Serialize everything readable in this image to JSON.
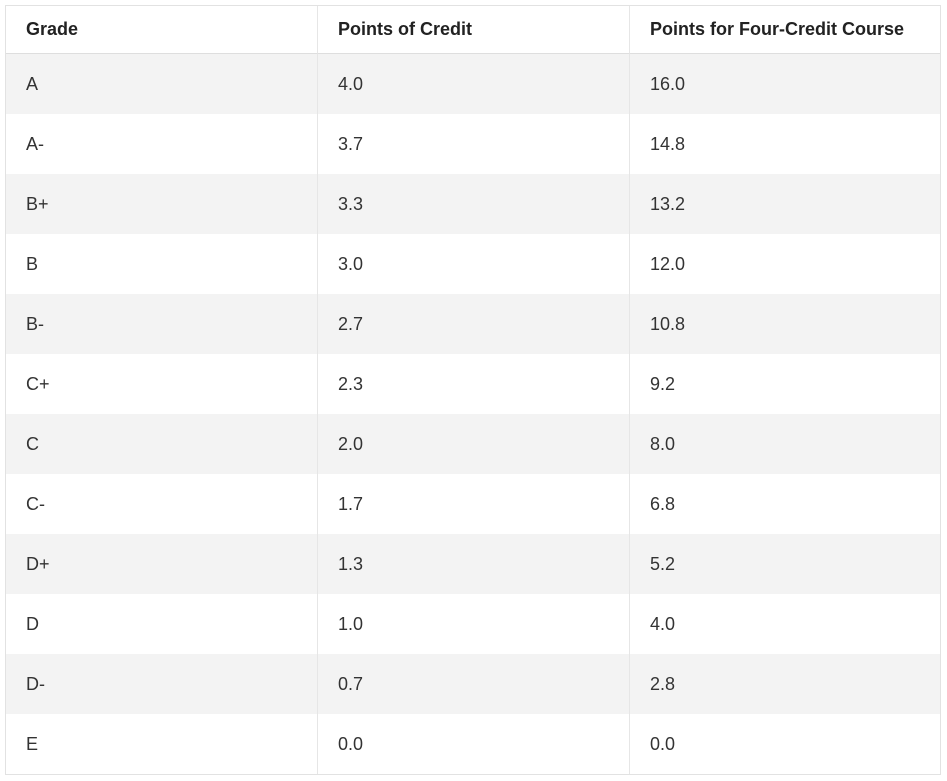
{
  "table": {
    "headers": [
      "Grade",
      "Points of Credit",
      "Points for Four-Credit Course"
    ],
    "rows": [
      [
        "A",
        "4.0",
        "16.0"
      ],
      [
        "A-",
        "3.7",
        "14.8"
      ],
      [
        "B+",
        "3.3",
        "13.2"
      ],
      [
        "B",
        "3.0",
        "12.0"
      ],
      [
        "B-",
        "2.7",
        "10.8"
      ],
      [
        "C+",
        "2.3",
        "9.2"
      ],
      [
        "C",
        "2.0",
        "8.0"
      ],
      [
        "C-",
        "1.7",
        "6.8"
      ],
      [
        "D+",
        "1.3",
        "5.2"
      ],
      [
        "D",
        "1.0",
        "4.0"
      ],
      [
        "D-",
        "0.7",
        "2.8"
      ],
      [
        "E",
        "0.0",
        "0.0"
      ]
    ]
  },
  "colors": {
    "stripe": "#f3f3f3",
    "background": "#ffffff",
    "border": "#e2e2e2",
    "text": "#333333"
  }
}
